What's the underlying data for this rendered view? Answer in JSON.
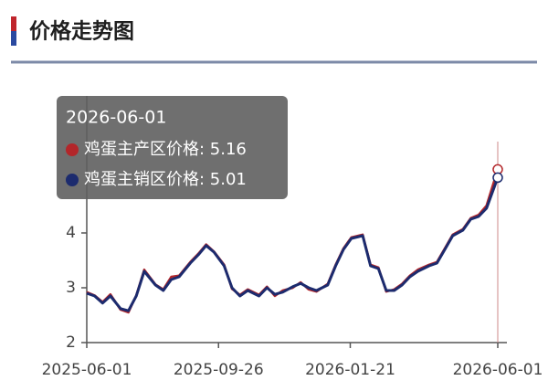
{
  "header": {
    "title": "价格走势图"
  },
  "chart_data": {
    "type": "line",
    "x": [
      "2025-06-01",
      "2025-06-08",
      "2025-06-15",
      "2025-06-22",
      "2025-07-01",
      "2025-07-08",
      "2025-07-15",
      "2025-07-22",
      "2025-08-01",
      "2025-08-08",
      "2025-08-15",
      "2025-08-22",
      "2025-09-01",
      "2025-09-08",
      "2025-09-15",
      "2025-09-22",
      "2025-10-01",
      "2025-10-08",
      "2025-10-15",
      "2025-10-22",
      "2025-11-01",
      "2025-11-08",
      "2025-11-15",
      "2025-11-22",
      "2025-12-01",
      "2025-12-08",
      "2025-12-15",
      "2025-12-22",
      "2026-01-01",
      "2026-01-08",
      "2026-01-15",
      "2026-01-22",
      "2026-02-01",
      "2026-02-08",
      "2026-02-15",
      "2026-02-22",
      "2026-03-01",
      "2026-03-08",
      "2026-03-15",
      "2026-03-22",
      "2026-04-01",
      "2026-04-08",
      "2026-04-15",
      "2026-04-22",
      "2026-05-01",
      "2026-05-08",
      "2026-05-15",
      "2026-05-22",
      "2026-06-01"
    ],
    "series": [
      {
        "name": "鸡蛋主产区价格",
        "color": "#b3262a",
        "values": [
          2.92,
          2.86,
          2.74,
          2.88,
          2.6,
          2.55,
          2.86,
          3.33,
          3.06,
          2.97,
          3.2,
          3.22,
          3.47,
          3.62,
          3.79,
          3.66,
          3.42,
          2.98,
          2.87,
          2.97,
          2.87,
          3.02,
          2.85,
          2.95,
          3.0,
          3.1,
          2.97,
          2.93,
          3.07,
          3.42,
          3.72,
          3.92,
          3.97,
          3.42,
          3.37,
          2.93,
          2.97,
          3.07,
          3.22,
          3.33,
          3.42,
          3.47,
          3.72,
          3.97,
          4.07,
          4.27,
          4.33,
          4.5,
          5.16
        ]
      },
      {
        "name": "鸡蛋主销区价格",
        "color": "#1c2b6e",
        "values": [
          2.9,
          2.85,
          2.72,
          2.85,
          2.62,
          2.58,
          2.85,
          3.3,
          3.05,
          2.95,
          3.15,
          3.2,
          3.45,
          3.6,
          3.77,
          3.65,
          3.4,
          3.0,
          2.85,
          2.95,
          2.85,
          3.0,
          2.88,
          2.92,
          3.02,
          3.08,
          3.0,
          2.95,
          3.05,
          3.4,
          3.7,
          3.9,
          3.95,
          3.4,
          3.35,
          2.95,
          2.95,
          3.05,
          3.2,
          3.3,
          3.4,
          3.45,
          3.7,
          3.95,
          4.05,
          4.25,
          4.3,
          4.45,
          5.01
        ]
      }
    ],
    "xlim": [
      "2025-06-01",
      "2026-06-01"
    ],
    "xticks": [
      "2025-06-01",
      "2025-09-26",
      "2026-01-21",
      "2026-06-01"
    ],
    "ylim": [
      2,
      5.5
    ],
    "yticks": [
      2,
      3,
      4
    ],
    "tooltip": {
      "title": "2026-06-01",
      "lines": [
        "鸡蛋主产区价格: 5.16",
        "鸡蛋主销区价格: 5.01"
      ]
    }
  }
}
